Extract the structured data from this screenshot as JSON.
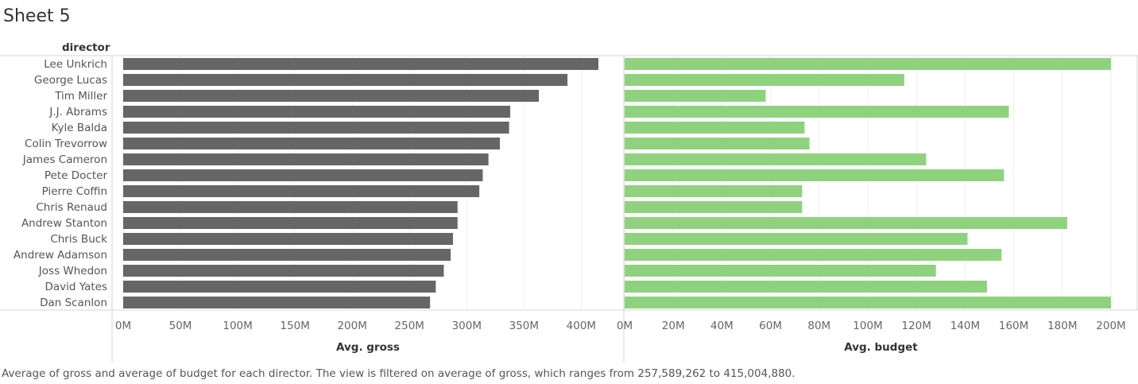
{
  "sheet": {
    "title": "Sheet 5",
    "row_header": "director",
    "caption": "Average of gross and average of budget for each director. The view is filtered on average of gross, which ranges from 257,589,262 to 415,004,880."
  },
  "colors": {
    "gross_bar": "#666666",
    "budget_bar": "#8fd27e",
    "gridline": "#eeeeee",
    "border": "#d4d4d4"
  },
  "chart_data": [
    {
      "type": "bar",
      "orientation": "horizontal",
      "categories": [
        "Lee Unkrich",
        "George Lucas",
        "Tim Miller",
        "J.J. Abrams",
        "Kyle Balda",
        "Colin Trevorrow",
        "James Cameron",
        "Pete Docter",
        "Pierre Coffin",
        "Chris Renaud",
        "Andrew Stanton",
        "Chris Buck",
        "Andrew Adamson",
        "Joss Whedon",
        "David Yates",
        "Dan Scanlon"
      ],
      "series": [
        {
          "values": [
            415004880,
            388000000,
            363000000,
            338000000,
            337000000,
            329000000,
            319000000,
            314000000,
            311000000,
            292000000,
            292000000,
            288000000,
            286000000,
            280000000,
            273000000,
            268000000
          ]
        }
      ],
      "xlabel": "Avg. gross",
      "xlim": [
        0,
        420000000
      ],
      "ticks": [
        {
          "v": 0,
          "label": "0M"
        },
        {
          "v": 50000000,
          "label": "50M"
        },
        {
          "v": 100000000,
          "label": "100M"
        },
        {
          "v": 150000000,
          "label": "150M"
        },
        {
          "v": 200000000,
          "label": "200M"
        },
        {
          "v": 250000000,
          "label": "250M"
        },
        {
          "v": 300000000,
          "label": "300M"
        },
        {
          "v": 350000000,
          "label": "350M"
        },
        {
          "v": 400000000,
          "label": "400M"
        }
      ],
      "grid": true
    },
    {
      "type": "bar",
      "orientation": "horizontal",
      "categories": [
        "Lee Unkrich",
        "George Lucas",
        "Tim Miller",
        "J.J. Abrams",
        "Kyle Balda",
        "Colin Trevorrow",
        "James Cameron",
        "Pete Docter",
        "Pierre Coffin",
        "Chris Renaud",
        "Andrew Stanton",
        "Chris Buck",
        "Andrew Adamson",
        "Joss Whedon",
        "David Yates",
        "Dan Scanlon"
      ],
      "series": [
        {
          "values": [
            200000000,
            115000000,
            58000000,
            158000000,
            74000000,
            76000000,
            124000000,
            156000000,
            73000000,
            73000000,
            182000000,
            141000000,
            155000000,
            128000000,
            149000000,
            200000000
          ]
        }
      ],
      "xlabel": "Avg. budget",
      "xlim": [
        0,
        210000000
      ],
      "ticks": [
        {
          "v": 0,
          "label": "0M"
        },
        {
          "v": 20000000,
          "label": "20M"
        },
        {
          "v": 40000000,
          "label": "40M"
        },
        {
          "v": 60000000,
          "label": "60M"
        },
        {
          "v": 80000000,
          "label": "80M"
        },
        {
          "v": 100000000,
          "label": "100M"
        },
        {
          "v": 120000000,
          "label": "120M"
        },
        {
          "v": 140000000,
          "label": "140M"
        },
        {
          "v": 160000000,
          "label": "160M"
        },
        {
          "v": 180000000,
          "label": "180M"
        },
        {
          "v": 200000000,
          "label": "200M"
        }
      ],
      "grid": true
    }
  ]
}
